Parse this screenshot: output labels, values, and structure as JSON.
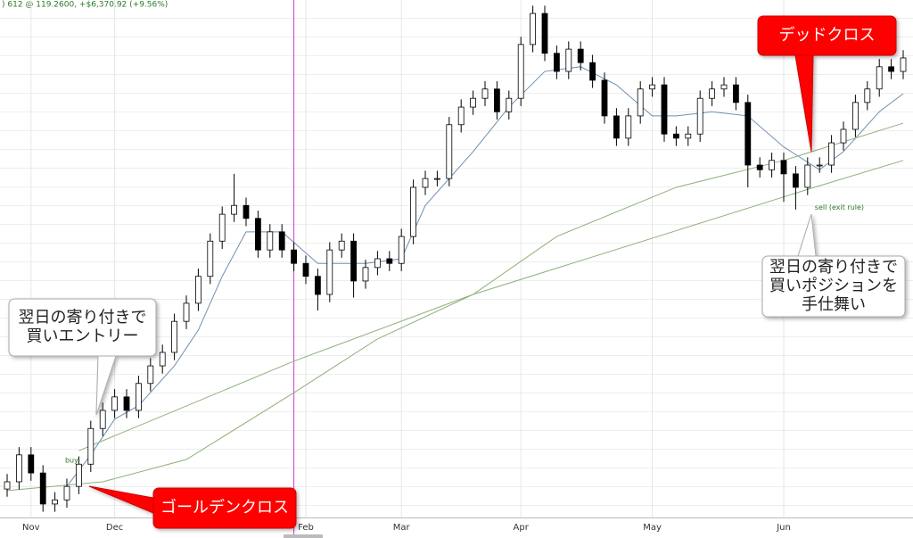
{
  "chart_data": {
    "type": "candlestick",
    "header": ") 612 @ 119.2600, +$6,370.92 (+9.56%)",
    "open": [
      5.5,
      6.9,
      12.1,
      8.6,
      2.6,
      3.4,
      6.0,
      10.3,
      17.2,
      20.7,
      23.3,
      20.7,
      25.9,
      29.3,
      31.9,
      37.9,
      41.4,
      46.6,
      53.4,
      58.6,
      60.3,
      57.8,
      51.7,
      55.2,
      51.7,
      49.1,
      46.6,
      43.1,
      51.7,
      53.4,
      45.7,
      48.3,
      50.0,
      49.1,
      54.3,
      63.8,
      65.5,
      65.5,
      75.9,
      79.3,
      81.0,
      82.8,
      78.4,
      81.0,
      91.4,
      97.4,
      89.7,
      86.2,
      90.5,
      87.9,
      84.5,
      77.6,
      73.3,
      77.6,
      82.8,
      83.6,
      74.1,
      73.3,
      74.1,
      81.0,
      82.8,
      83.6,
      80.2,
      68.1,
      67.2,
      69.0,
      66.4,
      63.8,
      68.1,
      68.1,
      72.4,
      75.0,
      80.2,
      82.8,
      87.1,
      86.2
    ],
    "high": [
      8.4,
      13.6,
      13.6,
      10.1,
      4.9,
      7.5,
      11.8,
      18.7,
      22.2,
      24.8,
      24.8,
      27.4,
      30.8,
      33.4,
      39.4,
      42.9,
      48.1,
      54.9,
      60.1,
      66.4,
      61.8,
      59.3,
      56.7,
      56.7,
      53.2,
      50.6,
      48.1,
      53.2,
      54.9,
      54.9,
      49.8,
      51.5,
      51.5,
      55.8,
      65.3,
      67.0,
      67.0,
      77.4,
      80.8,
      82.5,
      84.3,
      84.3,
      82.5,
      92.9,
      98.9,
      98.9,
      91.2,
      92.0,
      92.0,
      89.4,
      86.0,
      79.1,
      79.1,
      84.3,
      85.1,
      85.1,
      75.6,
      75.6,
      82.5,
      84.3,
      85.1,
      85.1,
      81.7,
      69.6,
      70.5,
      70.5,
      67.9,
      69.6,
      69.6,
      73.9,
      76.5,
      81.7,
      84.3,
      88.6,
      88.6,
      90.3
    ],
    "low": [
      4.0,
      5.4,
      7.1,
      1.1,
      1.1,
      1.9,
      4.5,
      8.8,
      15.7,
      19.2,
      19.2,
      19.2,
      24.4,
      27.8,
      30.4,
      36.4,
      39.9,
      45.1,
      51.9,
      57.1,
      56.3,
      50.2,
      50.2,
      50.2,
      47.6,
      45.1,
      40.0,
      41.6,
      50.2,
      42.5,
      44.2,
      46.8,
      47.6,
      47.6,
      52.8,
      62.3,
      64.0,
      64.0,
      74.4,
      77.8,
      79.5,
      76.9,
      76.9,
      79.5,
      89.9,
      88.2,
      84.7,
      84.7,
      86.4,
      83.0,
      76.1,
      71.8,
      71.8,
      76.1,
      81.3,
      72.6,
      71.8,
      71.8,
      72.6,
      79.5,
      81.3,
      78.7,
      63.8,
      65.7,
      65.7,
      61.0,
      59.5,
      62.3,
      66.6,
      66.6,
      70.9,
      73.5,
      78.7,
      81.3,
      84.7,
      84.7
    ],
    "close": [
      6.9,
      12.1,
      8.6,
      2.6,
      3.4,
      6.0,
      10.3,
      17.2,
      20.7,
      23.3,
      20.7,
      25.9,
      29.3,
      31.9,
      37.9,
      41.4,
      46.6,
      53.4,
      58.6,
      60.3,
      57.8,
      51.7,
      55.2,
      51.7,
      49.1,
      46.6,
      43.1,
      51.7,
      53.4,
      45.7,
      48.3,
      50.0,
      49.1,
      54.3,
      63.8,
      65.5,
      65.5,
      75.9,
      79.3,
      81.0,
      82.8,
      78.4,
      81.0,
      91.4,
      97.4,
      89.7,
      86.2,
      90.5,
      87.9,
      84.5,
      77.6,
      73.3,
      77.6,
      82.8,
      83.6,
      74.1,
      73.3,
      74.1,
      81.0,
      82.8,
      83.6,
      80.2,
      68.1,
      67.2,
      69.0,
      66.4,
      63.8,
      68.1,
      68.1,
      72.4,
      75.0,
      80.2,
      82.8,
      87.1,
      86.2,
      88.8
    ],
    "lines": [
      {
        "color": "#6f8fb0",
        "x": [
          5,
          7,
          9,
          11,
          14,
          16,
          18,
          20,
          23,
          26,
          28,
          30,
          33,
          35,
          39,
          42,
          45,
          48,
          51,
          54,
          56,
          59,
          62,
          65,
          68,
          70,
          73,
          75
        ],
        "values": [
          6.0,
          12.1,
          19.0,
          21.6,
          29.3,
          36.2,
          46.6,
          55.2,
          55.2,
          49.1,
          49.1,
          49.1,
          50.0,
          60.3,
          70.7,
          79.3,
          86.2,
          87.1,
          83.6,
          77.6,
          77.6,
          78.4,
          77.6,
          71.6,
          67.2,
          70.7,
          78.4,
          81.9
        ]
      },
      {
        "color": "#8fb07a",
        "x": [
          6,
          24,
          39,
          67,
          75
        ],
        "values": [
          12.9,
          30.2,
          43.1,
          63.4,
          69.0
        ]
      },
      {
        "color": "#8fb07a",
        "x": [
          0,
          8,
          15,
          24,
          31,
          39,
          46,
          56,
          65,
          75
        ],
        "values": [
          5.2,
          6.9,
          11.2,
          24.1,
          34.5,
          43.1,
          54.3,
          63.8,
          69.0,
          76.2
        ]
      }
    ],
    "ylim": [
      0,
      100
    ],
    "xticks": [
      {
        "value": 2,
        "label": "Nov"
      },
      {
        "value": 9,
        "label": "Dec"
      },
      {
        "value": 25,
        "label": "Feb"
      },
      {
        "value": 33,
        "label": "Mar"
      },
      {
        "value": 43,
        "label": "Apr"
      },
      {
        "value": 54,
        "label": "May"
      },
      {
        "value": 65,
        "label": "Jun"
      }
    ],
    "crosshair_x": 24,
    "up_color": "#ffffff",
    "down_color": "#000000",
    "signals": [
      {
        "x": 6,
        "label": "buy"
      },
      {
        "x": 67,
        "label": "sell (exit rule)"
      }
    ],
    "callouts": [
      {
        "lines": [
          "翌日の寄り付きで",
          "買いエントリー"
        ]
      },
      {
        "lines": [
          "翌日の寄り付きで",
          "買いポジションを",
          "手仕舞い"
        ]
      },
      {
        "lines": [
          "ゴールデンクロス"
        ]
      },
      {
        "lines": [
          "デッドクロス"
        ]
      }
    ]
  }
}
